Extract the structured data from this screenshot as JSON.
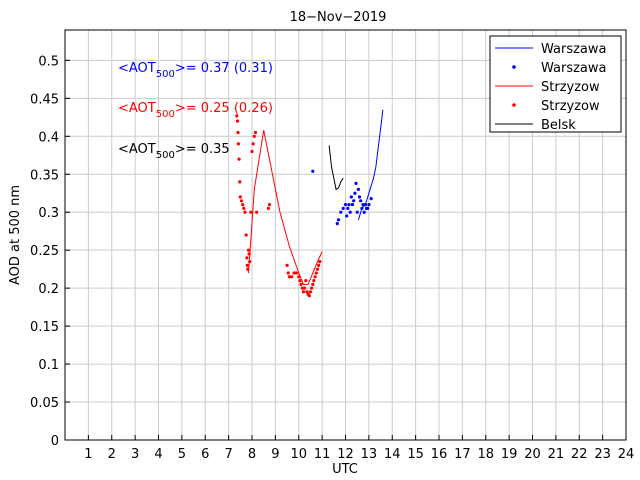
{
  "chart_data": {
    "type": "line",
    "title": "18−Nov−2019",
    "xlabel": "UTC",
    "ylabel": "AOD at 500 nm",
    "xlim": [
      0,
      24
    ],
    "ylim": [
      0,
      0.54
    ],
    "xticks": [
      1,
      2,
      3,
      4,
      5,
      6,
      7,
      8,
      9,
      10,
      11,
      12,
      13,
      14,
      15,
      16,
      17,
      18,
      19,
      20,
      21,
      22,
      23,
      24
    ],
    "yticks": [
      0,
      0.05,
      0.1,
      0.15,
      0.2,
      0.25,
      0.3,
      0.35,
      0.4,
      0.45,
      0.5
    ],
    "ytick_labels": [
      "0",
      "0.05",
      "0.1",
      "0.15",
      "0.2",
      "0.25",
      "0.3",
      "0.35",
      "0.4",
      "0.45",
      "0.5"
    ],
    "grid": true,
    "legend_position": "top-right",
    "annotations": [
      {
        "prefix": "<AOT",
        "sub": "500",
        "suffix": ">= 0.37 (0.31)",
        "color": "#0000ff"
      },
      {
        "prefix": "<AOT",
        "sub": "500",
        "suffix": ">= 0.25 (0.26)",
        "color": "#ff0000"
      },
      {
        "prefix": "<AOT",
        "sub": "500",
        "suffix": ">= 0.35",
        "color": "#000000"
      }
    ],
    "series": [
      {
        "name": "Warszawa",
        "style": "line",
        "color": "#0000ff",
        "x": [
          12.55,
          12.7,
          12.85,
          13.0,
          13.1,
          13.2,
          13.3,
          13.4,
          13.5,
          13.6
        ],
        "y": [
          0.29,
          0.305,
          0.31,
          0.325,
          0.335,
          0.345,
          0.36,
          0.385,
          0.41,
          0.435
        ]
      },
      {
        "name": "Warszawa",
        "style": "points",
        "color": "#0000ff",
        "x": [
          10.6,
          11.65,
          11.7,
          11.8,
          11.9,
          12.0,
          12.05,
          12.1,
          12.15,
          12.2,
          12.25,
          12.3,
          12.35,
          12.4,
          12.45,
          12.5,
          12.55,
          12.6,
          12.65,
          12.7,
          12.75,
          12.8,
          12.85,
          12.9,
          12.95,
          13.0,
          13.1
        ],
        "y": [
          0.354,
          0.285,
          0.29,
          0.3,
          0.305,
          0.31,
          0.295,
          0.305,
          0.31,
          0.3,
          0.32,
          0.31,
          0.315,
          0.325,
          0.338,
          0.3,
          0.33,
          0.32,
          0.315,
          0.305,
          0.31,
          0.3,
          0.31,
          0.305,
          0.305,
          0.31,
          0.318
        ]
      },
      {
        "name": "Strzyzow",
        "style": "line",
        "color": "#ff0000",
        "x": [
          7.85,
          8.1,
          8.5,
          9.2,
          9.6,
          10.0,
          10.2,
          10.4,
          10.6,
          10.8,
          11.0
        ],
        "y": [
          0.22,
          0.33,
          0.408,
          0.3,
          0.255,
          0.22,
          0.205,
          0.205,
          0.22,
          0.235,
          0.248
        ]
      },
      {
        "name": "Strzyzow",
        "style": "points",
        "color": "#ff0000",
        "x": [
          7.35,
          7.38,
          7.4,
          7.42,
          7.45,
          7.48,
          7.5,
          7.55,
          7.6,
          7.65,
          7.7,
          7.75,
          7.78,
          7.8,
          7.82,
          7.85,
          7.88,
          7.9,
          7.95,
          8.0,
          8.05,
          8.1,
          8.15,
          8.2,
          8.7,
          8.75,
          9.5,
          9.55,
          9.6,
          9.7,
          9.8,
          9.9,
          10.0,
          10.05,
          10.1,
          10.15,
          10.2,
          10.25,
          10.3,
          10.35,
          10.4,
          10.45,
          10.5,
          10.55,
          10.6,
          10.65,
          10.7,
          10.75,
          10.8,
          10.85,
          10.9
        ],
        "y": [
          0.427,
          0.42,
          0.405,
          0.39,
          0.37,
          0.34,
          0.32,
          0.315,
          0.31,
          0.305,
          0.3,
          0.27,
          0.24,
          0.23,
          0.225,
          0.25,
          0.245,
          0.235,
          0.3,
          0.38,
          0.39,
          0.4,
          0.405,
          0.3,
          0.305,
          0.31,
          0.23,
          0.22,
          0.215,
          0.215,
          0.22,
          0.22,
          0.215,
          0.21,
          0.205,
          0.2,
          0.195,
          0.2,
          0.21,
          0.195,
          0.192,
          0.19,
          0.195,
          0.2,
          0.205,
          0.21,
          0.215,
          0.22,
          0.225,
          0.23,
          0.235
        ]
      },
      {
        "name": "Belsk",
        "style": "line",
        "color": "#000000",
        "x": [
          11.3,
          11.4,
          11.5,
          11.6,
          11.7,
          11.8,
          11.9
        ],
        "y": [
          0.388,
          0.36,
          0.345,
          0.33,
          0.332,
          0.34,
          0.345
        ]
      }
    ]
  }
}
